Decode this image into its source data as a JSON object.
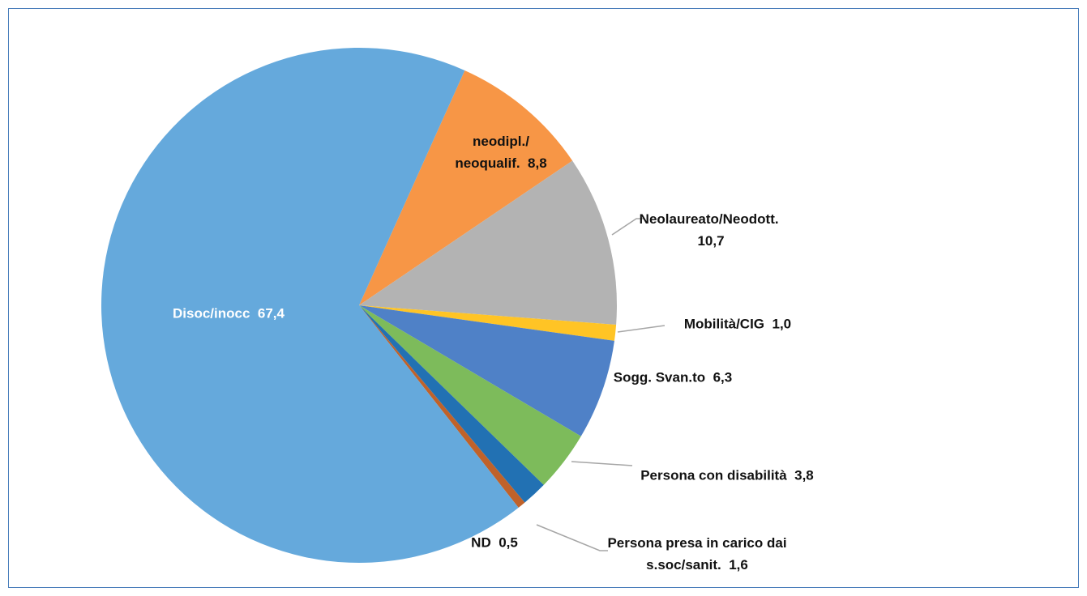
{
  "chart_data": {
    "type": "pie",
    "categories": [
      "neodipl./ neoqualif.",
      "Neolaureato/Neodott.",
      "Mobilità/CIG",
      "Sogg. Svan.to",
      "Persona con disabilità",
      "Persona presa in carico dai s.soc/sanit.",
      "ND",
      "Disoc/inocc"
    ],
    "values": [
      8.8,
      10.7,
      1.0,
      6.3,
      3.8,
      1.6,
      0.5,
      67.4
    ],
    "value_labels": [
      "8,8",
      "10,7",
      "1,0",
      "6,3",
      "3,8",
      "1,6",
      "0,5",
      "67,4"
    ],
    "colors": [
      "#f79646",
      "#b3b3b3",
      "#ffc425",
      "#4f81c7",
      "#7dbb5b",
      "#2271b3",
      "#c0622a",
      "#65a9dc"
    ]
  }
}
